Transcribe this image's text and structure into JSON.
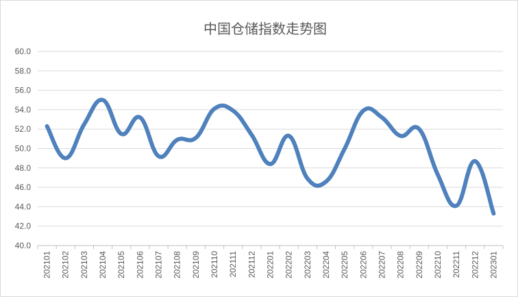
{
  "chart_data": {
    "type": "line",
    "title": "中国仓储指数走势图",
    "xlabel": "",
    "ylabel": "",
    "ylim": [
      40.0,
      60.0
    ],
    "yticks": [
      "40.0",
      "42.0",
      "44.0",
      "46.0",
      "48.0",
      "50.0",
      "52.0",
      "54.0",
      "56.0",
      "58.0",
      "60.0"
    ],
    "grid": true,
    "legend": "none",
    "categories": [
      "202101",
      "202102",
      "202103",
      "202104",
      "202105",
      "202106",
      "202107",
      "202108",
      "202109",
      "202110",
      "202111",
      "202112",
      "202201",
      "202202",
      "202203",
      "202204",
      "202205",
      "202206",
      "202207",
      "202208",
      "202209",
      "202210",
      "202211",
      "202212",
      "202301"
    ],
    "series": [
      {
        "values": [
          52.3,
          49.0,
          52.5,
          55.0,
          51.5,
          53.2,
          49.2,
          50.9,
          51.1,
          54.1,
          53.9,
          51.4,
          48.4,
          51.3,
          46.9,
          46.6,
          50.0,
          53.9,
          53.2,
          51.3,
          52.0,
          47.3,
          44.1,
          48.7,
          43.3
        ],
        "color": "#4f81bd"
      }
    ]
  }
}
